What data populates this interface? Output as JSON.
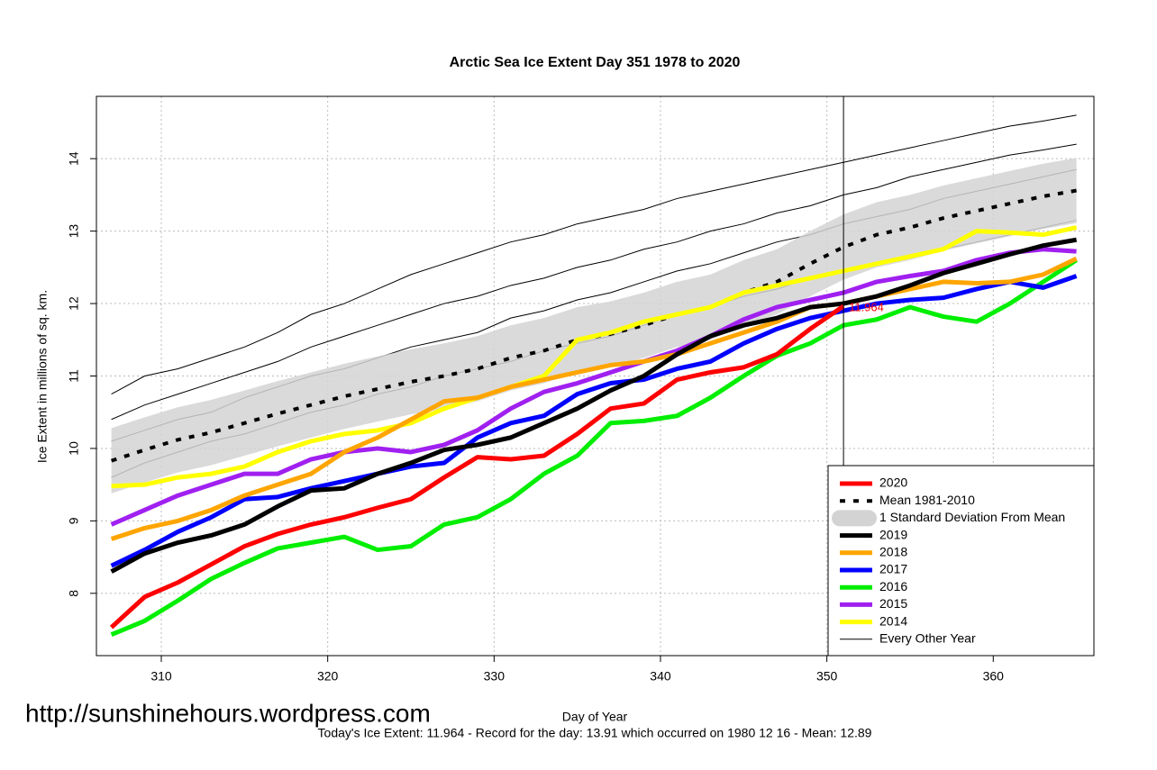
{
  "chart_data": {
    "type": "line",
    "title": "Arctic Sea Ice Extent Day 351 1978 to 2020",
    "x_label": "Day of Year",
    "y_label": "Ice Extent in millions of sq. km.",
    "footer": "Today's Ice Extent: 11.964  - Record for the day: 13.91 which occurred on 1980 12 16  - Mean: 12.89",
    "watermark": "http://sunshinehours.wordpress.com",
    "annotation": {
      "x": 351,
      "y": 11.964,
      "label": "11.964",
      "color": "#ff0000"
    },
    "marker_x": 351,
    "xlim": [
      306.1,
      366.05
    ],
    "ylim": [
      7.14,
      14.86
    ],
    "xticks": [
      310,
      320,
      330,
      340,
      350,
      360
    ],
    "yticks": [
      8,
      9,
      10,
      11,
      12,
      13,
      14
    ],
    "grid": true,
    "legend": "bottom-right",
    "x": [
      307,
      309,
      311,
      313,
      315,
      317,
      319,
      321,
      323,
      325,
      327,
      329,
      331,
      333,
      335,
      337,
      339,
      341,
      343,
      345,
      347,
      349,
      351,
      353,
      355,
      357,
      359,
      361,
      363,
      365
    ],
    "series": [
      {
        "name": "2020",
        "color": "#ff0000",
        "values": [
          7.53,
          7.95,
          8.15,
          8.4,
          8.65,
          8.82,
          8.95,
          9.05,
          9.18,
          9.3,
          9.6,
          9.88,
          9.85,
          9.9,
          10.2,
          10.55,
          10.62,
          10.95,
          11.05,
          11.12,
          11.3,
          11.65,
          11.964,
          null,
          null,
          null,
          null,
          null,
          null,
          null
        ]
      },
      {
        "name": "Mean 1981-2010",
        "color": "#000000",
        "dashed": true,
        "values": [
          9.83,
          9.98,
          10.12,
          10.22,
          10.35,
          10.48,
          10.6,
          10.72,
          10.82,
          10.92,
          11.0,
          11.1,
          11.25,
          11.35,
          11.5,
          11.58,
          11.7,
          11.85,
          11.95,
          12.15,
          12.3,
          12.55,
          12.78,
          12.95,
          13.05,
          13.18,
          13.28,
          13.38,
          13.48,
          13.56
        ]
      },
      {
        "name": "2019",
        "color": "#000000",
        "values": [
          8.3,
          8.55,
          8.7,
          8.8,
          8.95,
          9.2,
          9.42,
          9.45,
          9.65,
          9.8,
          9.98,
          10.05,
          10.15,
          10.35,
          10.55,
          10.8,
          11.0,
          11.3,
          11.55,
          11.7,
          11.8,
          11.95,
          12.0,
          12.1,
          12.25,
          12.42,
          12.55,
          12.68,
          12.8,
          12.88
        ]
      },
      {
        "name": "2018",
        "color": "#ffa500",
        "values": [
          8.75,
          8.9,
          9.0,
          9.15,
          9.35,
          9.5,
          9.65,
          9.95,
          10.15,
          10.4,
          10.65,
          10.7,
          10.85,
          10.95,
          11.05,
          11.15,
          11.2,
          11.3,
          11.45,
          11.6,
          11.75,
          11.95,
          12.0,
          12.1,
          12.2,
          12.3,
          12.28,
          12.3,
          12.4,
          12.62
        ]
      },
      {
        "name": "2017",
        "color": "#0000ff",
        "values": [
          8.38,
          8.6,
          8.85,
          9.05,
          9.3,
          9.33,
          9.45,
          9.55,
          9.65,
          9.75,
          9.8,
          10.15,
          10.35,
          10.45,
          10.75,
          10.9,
          10.95,
          11.1,
          11.2,
          11.45,
          11.65,
          11.8,
          11.9,
          12.0,
          12.05,
          12.08,
          12.2,
          12.3,
          12.22,
          12.38
        ]
      },
      {
        "name": "2016",
        "color": "#00ee00",
        "values": [
          7.43,
          7.62,
          7.9,
          8.2,
          8.42,
          8.62,
          8.7,
          8.78,
          8.6,
          8.65,
          8.95,
          9.05,
          9.3,
          9.65,
          9.9,
          10.35,
          10.38,
          10.45,
          10.7,
          11.0,
          11.28,
          11.45,
          11.7,
          11.78,
          11.95,
          11.82,
          11.75,
          12.0,
          12.3,
          12.6
        ]
      },
      {
        "name": "2015",
        "color": "#a020f0",
        "values": [
          8.95,
          9.15,
          9.35,
          9.5,
          9.65,
          9.65,
          9.85,
          9.95,
          10.0,
          9.95,
          10.05,
          10.25,
          10.55,
          10.78,
          10.9,
          11.05,
          11.2,
          11.35,
          11.55,
          11.78,
          11.95,
          12.05,
          12.15,
          12.3,
          12.38,
          12.45,
          12.6,
          12.7,
          12.75,
          12.72
        ]
      },
      {
        "name": "2014",
        "color": "#ffff00",
        "values": [
          9.48,
          9.5,
          9.6,
          9.65,
          9.75,
          9.95,
          10.1,
          10.2,
          10.25,
          10.35,
          10.55,
          10.7,
          10.85,
          11.0,
          11.5,
          11.6,
          11.75,
          11.85,
          11.95,
          12.15,
          12.25,
          12.35,
          12.45,
          12.55,
          12.65,
          12.75,
          13.0,
          12.98,
          12.95,
          13.05
        ]
      }
    ],
    "band": {
      "name": "1 Standard Deviation From Mean",
      "color": "#d3d3d3",
      "lower": [
        9.38,
        9.53,
        9.67,
        9.77,
        9.9,
        10.03,
        10.15,
        10.27,
        10.37,
        10.47,
        10.55,
        10.65,
        10.8,
        10.9,
        11.05,
        11.13,
        11.25,
        11.4,
        11.5,
        11.7,
        11.85,
        12.1,
        12.33,
        12.5,
        12.6,
        12.73,
        12.83,
        12.93,
        13.03,
        13.11
      ],
      "upper": [
        10.28,
        10.43,
        10.57,
        10.67,
        10.8,
        10.93,
        11.05,
        11.17,
        11.27,
        11.37,
        11.45,
        11.55,
        11.7,
        11.8,
        11.95,
        12.03,
        12.15,
        12.3,
        12.4,
        12.6,
        12.75,
        13.0,
        13.23,
        13.4,
        13.5,
        13.63,
        13.73,
        13.83,
        13.93,
        14.01
      ]
    },
    "other_years": {
      "name": "Every Other Year",
      "color": "#000000",
      "lines": [
        [
          10.75,
          11.0,
          11.1,
          11.25,
          11.4,
          11.6,
          11.85,
          12.0,
          12.2,
          12.4,
          12.55,
          12.7,
          12.85,
          12.95,
          13.1,
          13.2,
          13.3,
          13.45,
          13.55,
          13.65,
          13.75,
          13.85,
          13.95,
          14.05,
          14.15,
          14.25,
          14.35,
          14.45,
          14.52,
          14.6
        ],
        [
          10.4,
          10.6,
          10.75,
          10.9,
          11.05,
          11.2,
          11.4,
          11.55,
          11.7,
          11.85,
          12.0,
          12.1,
          12.25,
          12.35,
          12.5,
          12.6,
          12.75,
          12.85,
          13.0,
          13.1,
          13.25,
          13.35,
          13.5,
          13.6,
          13.75,
          13.85,
          13.95,
          14.05,
          14.12,
          14.2
        ],
        [
          9.6,
          9.8,
          9.95,
          10.1,
          10.2,
          10.35,
          10.5,
          10.6,
          10.75,
          10.85,
          11.0,
          11.1,
          11.2,
          11.35,
          11.45,
          11.55,
          11.7,
          11.85,
          11.95,
          12.1,
          12.2,
          12.35,
          12.45,
          12.55,
          12.65,
          12.75,
          12.85,
          12.95,
          13.05,
          13.15
        ],
        [
          10.1,
          10.25,
          10.4,
          10.5,
          10.7,
          10.85,
          11.0,
          11.1,
          11.25,
          11.4,
          11.5,
          11.6,
          11.8,
          11.9,
          12.05,
          12.15,
          12.3,
          12.45,
          12.55,
          12.7,
          12.85,
          12.95,
          13.1,
          13.2,
          13.3,
          13.45,
          13.55,
          13.65,
          13.75,
          13.85
        ]
      ]
    }
  }
}
